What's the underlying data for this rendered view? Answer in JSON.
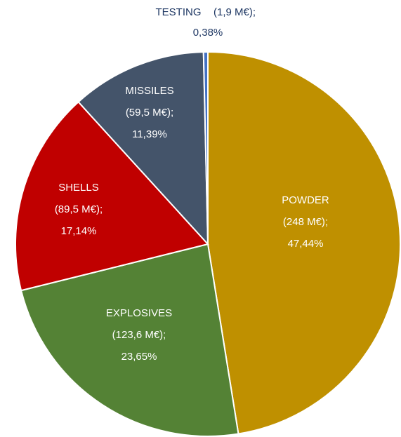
{
  "chart_data": {
    "type": "pie",
    "categories": [
      "POWDER",
      "EXPLOSIVES",
      "SHELLS",
      "MISSILES",
      "TESTING"
    ],
    "values": [
      248,
      123.6,
      89.5,
      59.5,
      1.9
    ],
    "value_labels": [
      "(248 M€);",
      "(123,6 M€);",
      "(89,5 M€);",
      "(59,5 M€);",
      "(1,9 M€);"
    ],
    "percents": [
      47.44,
      23.65,
      17.14,
      11.39,
      0.38
    ],
    "percent_labels": [
      "47,44%",
      "23,65%",
      "17,14%",
      "11,39%",
      "0,38%"
    ],
    "colors": [
      "#bf9000",
      "#548235",
      "#c00000",
      "#44546a",
      "#4472c4"
    ]
  }
}
